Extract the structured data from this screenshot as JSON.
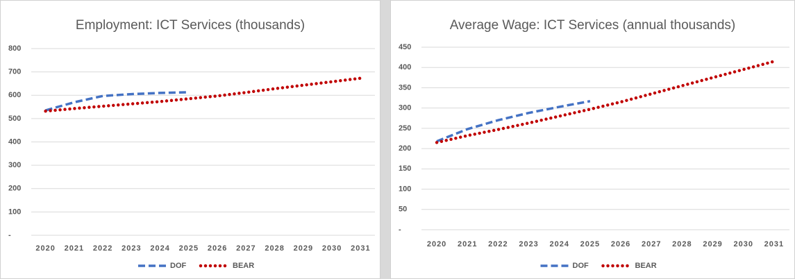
{
  "chart_data": [
    {
      "type": "line",
      "title": "Employment: ICT Services (thousands)",
      "categories": [
        "2020",
        "2021",
        "2022",
        "2023",
        "2024",
        "2025",
        "2026",
        "2027",
        "2028",
        "2029",
        "2030",
        "2031"
      ],
      "series": [
        {
          "name": "DOF",
          "color": "#4472c4",
          "style": "dashed",
          "values": [
            535,
            570,
            597,
            605,
            610,
            613,
            null,
            null,
            null,
            null,
            null,
            null
          ]
        },
        {
          "name": "BEAR",
          "color": "#c00000",
          "style": "dotted",
          "values": [
            532,
            543,
            553,
            563,
            573,
            585,
            597,
            612,
            628,
            643,
            658,
            673
          ]
        }
      ],
      "ylim": [
        0,
        800
      ],
      "yticks": [
        {
          "value": 0,
          "label": "-"
        },
        100,
        200,
        300,
        400,
        500,
        600,
        700,
        800
      ],
      "grid": true,
      "legend": "bottom"
    },
    {
      "type": "line",
      "title": "Average Wage: ICT Services (annual thousands)",
      "categories": [
        "2020",
        "2021",
        "2022",
        "2023",
        "2024",
        "2025",
        "2026",
        "2027",
        "2028",
        "2029",
        "2030",
        "2031"
      ],
      "series": [
        {
          "name": "DOF",
          "color": "#4472c4",
          "style": "dashed",
          "values": [
            218,
            248,
            270,
            288,
            303,
            317,
            null,
            null,
            null,
            null,
            null,
            null
          ]
        },
        {
          "name": "BEAR",
          "color": "#c00000",
          "style": "dotted",
          "values": [
            215,
            232,
            247,
            263,
            280,
            297,
            315,
            335,
            355,
            375,
            395,
            415
          ]
        }
      ],
      "ylim": [
        0,
        450
      ],
      "yticks": [
        {
          "value": 0,
          "label": "-"
        },
        50,
        100,
        150,
        200,
        250,
        300,
        350,
        400,
        450
      ],
      "grid": true,
      "legend": "bottom"
    }
  ]
}
